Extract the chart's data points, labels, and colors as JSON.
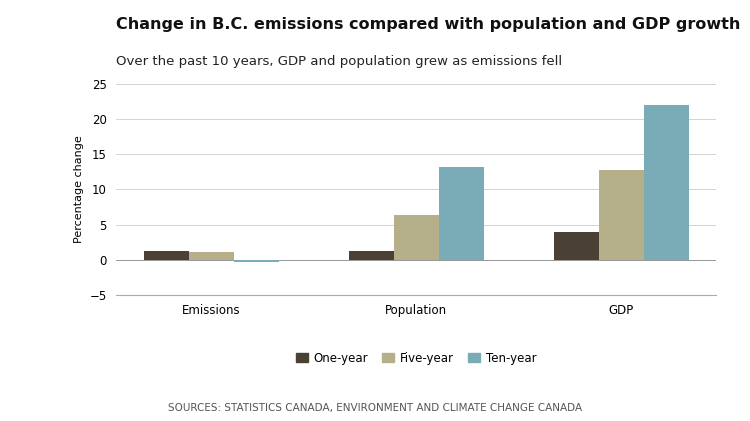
{
  "title": "Change in B.C. emissions compared with population and GDP growth",
  "subtitle": "Over the past 10 years, GDP and population grew as emissions fell",
  "source": "SOURCES: STATISTICS CANADA, ENVIRONMENT AND CLIMATE CHANGE CANADA",
  "categories": [
    "Emissions",
    "Population",
    "GDP"
  ],
  "series": {
    "One-year": [
      1.2,
      1.2,
      3.9
    ],
    "Five-year": [
      1.1,
      6.3,
      12.8
    ],
    "Ten-year": [
      -0.4,
      13.2,
      22.0
    ]
  },
  "colors": {
    "One-year": "#4a4034",
    "Five-year": "#b5b08a",
    "Ten-year": "#7aacb8"
  },
  "ylabel": "Percentage change",
  "ylim": [
    -5,
    25
  ],
  "yticks": [
    -5,
    0,
    5,
    10,
    15,
    20,
    25
  ],
  "bar_width": 0.22,
  "background_color": "#ffffff",
  "title_fontsize": 11.5,
  "subtitle_fontsize": 9.5,
  "source_fontsize": 7.5,
  "ylabel_fontsize": 8,
  "tick_fontsize": 8.5,
  "legend_fontsize": 8.5
}
